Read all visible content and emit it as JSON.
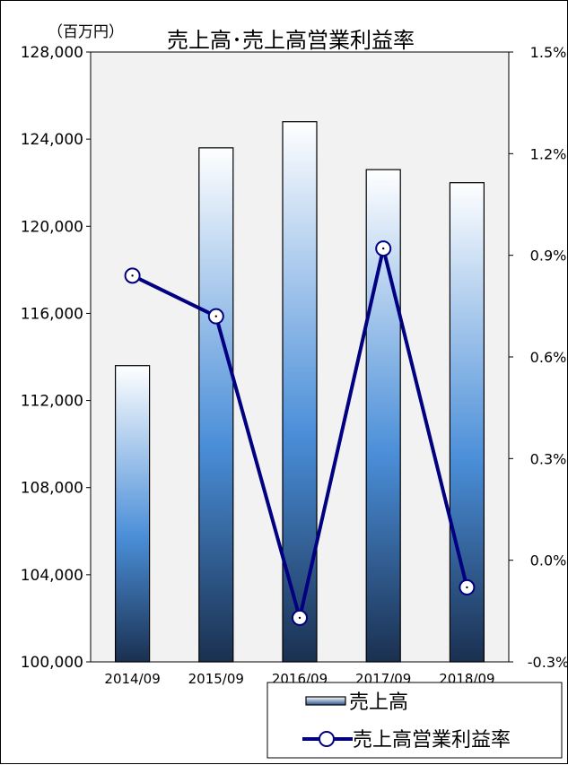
{
  "chart_data": {
    "type": "bar",
    "title": "売上高･売上高営業利益率",
    "y_unit_label": "（百万円）",
    "categories": [
      "2014/09",
      "2015/09",
      "2016/09",
      "2017/09",
      "2018/09"
    ],
    "series": [
      {
        "name": "売上高",
        "type": "bar",
        "axis": "left",
        "values": [
          113600,
          123600,
          124800,
          122600,
          122000
        ]
      },
      {
        "name": "売上高営業利益率",
        "type": "line",
        "axis": "right",
        "values": [
          0.84,
          0.72,
          -0.17,
          0.92,
          -0.08
        ]
      }
    ],
    "ylim_left": [
      100000,
      128000
    ],
    "yticks_left": [
      "100,000",
      "104,000",
      "108,000",
      "112,000",
      "116,000",
      "120,000",
      "124,000",
      "128,000"
    ],
    "ylim_right": [
      -0.3,
      1.5
    ],
    "yticks_right": [
      "-0.3%",
      "0.0%",
      "0.3%",
      "0.6%",
      "0.9%",
      "1.2%",
      "1.5%"
    ],
    "grid": false,
    "legend_position": "bottom-right",
    "colors": {
      "line": "#000080",
      "bar_dark": "#1a3050",
      "bar_mid": "#4a8ed8",
      "bar_light": "#ffffff",
      "plot_bg": "#f2f2f2"
    }
  }
}
